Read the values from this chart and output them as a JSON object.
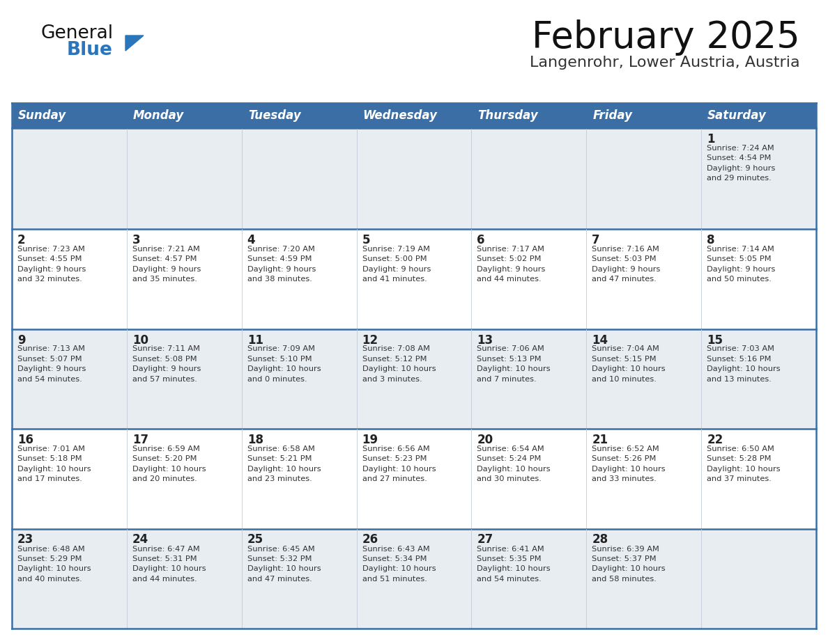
{
  "title": "February 2025",
  "subtitle": "Langenrohr, Lower Austria, Austria",
  "days_of_week": [
    "Sunday",
    "Monday",
    "Tuesday",
    "Wednesday",
    "Thursday",
    "Friday",
    "Saturday"
  ],
  "header_bg": "#3a6ea5",
  "header_text": "#ffffff",
  "row0_bg": "#e8edf2",
  "row1_bg": "#ffffff",
  "row2_bg": "#e8edf2",
  "row3_bg": "#ffffff",
  "row4_bg": "#e8edf2",
  "border_color": "#3a6ea5",
  "cell_divider": "#c0cad6",
  "day_num_color": "#222222",
  "info_color": "#333333",
  "title_color": "#111111",
  "subtitle_color": "#333333",
  "logo_general_color": "#111111",
  "logo_blue_color": "#2a75bb",
  "logo_tri_color": "#2a75bb",
  "calendar": [
    [
      {
        "day": null,
        "info": ""
      },
      {
        "day": null,
        "info": ""
      },
      {
        "day": null,
        "info": ""
      },
      {
        "day": null,
        "info": ""
      },
      {
        "day": null,
        "info": ""
      },
      {
        "day": null,
        "info": ""
      },
      {
        "day": 1,
        "info": "Sunrise: 7:24 AM\nSunset: 4:54 PM\nDaylight: 9 hours\nand 29 minutes."
      }
    ],
    [
      {
        "day": 2,
        "info": "Sunrise: 7:23 AM\nSunset: 4:55 PM\nDaylight: 9 hours\nand 32 minutes."
      },
      {
        "day": 3,
        "info": "Sunrise: 7:21 AM\nSunset: 4:57 PM\nDaylight: 9 hours\nand 35 minutes."
      },
      {
        "day": 4,
        "info": "Sunrise: 7:20 AM\nSunset: 4:59 PM\nDaylight: 9 hours\nand 38 minutes."
      },
      {
        "day": 5,
        "info": "Sunrise: 7:19 AM\nSunset: 5:00 PM\nDaylight: 9 hours\nand 41 minutes."
      },
      {
        "day": 6,
        "info": "Sunrise: 7:17 AM\nSunset: 5:02 PM\nDaylight: 9 hours\nand 44 minutes."
      },
      {
        "day": 7,
        "info": "Sunrise: 7:16 AM\nSunset: 5:03 PM\nDaylight: 9 hours\nand 47 minutes."
      },
      {
        "day": 8,
        "info": "Sunrise: 7:14 AM\nSunset: 5:05 PM\nDaylight: 9 hours\nand 50 minutes."
      }
    ],
    [
      {
        "day": 9,
        "info": "Sunrise: 7:13 AM\nSunset: 5:07 PM\nDaylight: 9 hours\nand 54 minutes."
      },
      {
        "day": 10,
        "info": "Sunrise: 7:11 AM\nSunset: 5:08 PM\nDaylight: 9 hours\nand 57 minutes."
      },
      {
        "day": 11,
        "info": "Sunrise: 7:09 AM\nSunset: 5:10 PM\nDaylight: 10 hours\nand 0 minutes."
      },
      {
        "day": 12,
        "info": "Sunrise: 7:08 AM\nSunset: 5:12 PM\nDaylight: 10 hours\nand 3 minutes."
      },
      {
        "day": 13,
        "info": "Sunrise: 7:06 AM\nSunset: 5:13 PM\nDaylight: 10 hours\nand 7 minutes."
      },
      {
        "day": 14,
        "info": "Sunrise: 7:04 AM\nSunset: 5:15 PM\nDaylight: 10 hours\nand 10 minutes."
      },
      {
        "day": 15,
        "info": "Sunrise: 7:03 AM\nSunset: 5:16 PM\nDaylight: 10 hours\nand 13 minutes."
      }
    ],
    [
      {
        "day": 16,
        "info": "Sunrise: 7:01 AM\nSunset: 5:18 PM\nDaylight: 10 hours\nand 17 minutes."
      },
      {
        "day": 17,
        "info": "Sunrise: 6:59 AM\nSunset: 5:20 PM\nDaylight: 10 hours\nand 20 minutes."
      },
      {
        "day": 18,
        "info": "Sunrise: 6:58 AM\nSunset: 5:21 PM\nDaylight: 10 hours\nand 23 minutes."
      },
      {
        "day": 19,
        "info": "Sunrise: 6:56 AM\nSunset: 5:23 PM\nDaylight: 10 hours\nand 27 minutes."
      },
      {
        "day": 20,
        "info": "Sunrise: 6:54 AM\nSunset: 5:24 PM\nDaylight: 10 hours\nand 30 minutes."
      },
      {
        "day": 21,
        "info": "Sunrise: 6:52 AM\nSunset: 5:26 PM\nDaylight: 10 hours\nand 33 minutes."
      },
      {
        "day": 22,
        "info": "Sunrise: 6:50 AM\nSunset: 5:28 PM\nDaylight: 10 hours\nand 37 minutes."
      }
    ],
    [
      {
        "day": 23,
        "info": "Sunrise: 6:48 AM\nSunset: 5:29 PM\nDaylight: 10 hours\nand 40 minutes."
      },
      {
        "day": 24,
        "info": "Sunrise: 6:47 AM\nSunset: 5:31 PM\nDaylight: 10 hours\nand 44 minutes."
      },
      {
        "day": 25,
        "info": "Sunrise: 6:45 AM\nSunset: 5:32 PM\nDaylight: 10 hours\nand 47 minutes."
      },
      {
        "day": 26,
        "info": "Sunrise: 6:43 AM\nSunset: 5:34 PM\nDaylight: 10 hours\nand 51 minutes."
      },
      {
        "day": 27,
        "info": "Sunrise: 6:41 AM\nSunset: 5:35 PM\nDaylight: 10 hours\nand 54 minutes."
      },
      {
        "day": 28,
        "info": "Sunrise: 6:39 AM\nSunset: 5:37 PM\nDaylight: 10 hours\nand 58 minutes."
      },
      {
        "day": null,
        "info": ""
      }
    ]
  ]
}
